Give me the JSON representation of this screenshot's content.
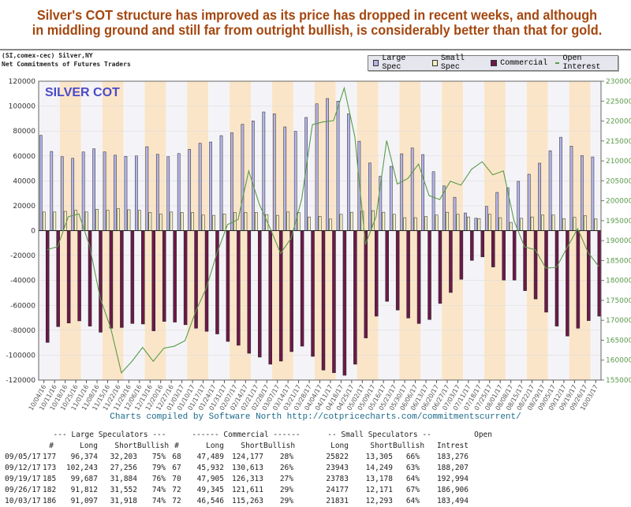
{
  "headline": [
    "Silver's COT structure has improved as its price has dropped in recent weeks, and although",
    "in middling ground and still far from outright bullish, is considerably better than that for gold."
  ],
  "header": {
    "symbol": "(SI,comex-cec) Silver,NY",
    "subtitle": "Net Commitments of Futures Traders"
  },
  "credit": "Charts compiled by Software North  http://cotpricecharts.com/commitmentscurrent/",
  "chart_data": {
    "type": "bar",
    "title": "SILVER COT",
    "legend_position": "top-right",
    "grid": true,
    "categories": [
      "10/04/16",
      "10/11/16",
      "10/18/16",
      "10/25/16",
      "11/01/16",
      "11/08/16",
      "11/15/16",
      "11/22/16",
      "11/29/16",
      "12/06/16",
      "12/13/16",
      "12/20/16",
      "12/27/16",
      "01/03/17",
      "01/10/17",
      "01/17/17",
      "01/24/17",
      "01/31/17",
      "02/07/17",
      "02/14/17",
      "02/21/17",
      "02/28/17",
      "03/07/17",
      "03/14/17",
      "03/21/17",
      "03/28/17",
      "04/04/17",
      "04/11/17",
      "04/18/17",
      "04/25/17",
      "05/02/17",
      "05/09/17",
      "05/16/17",
      "05/23/17",
      "05/30/17",
      "06/06/17",
      "06/13/17",
      "06/20/17",
      "06/27/17",
      "07/03/17",
      "07/11/17",
      "07/18/17",
      "07/25/17",
      "08/01/17",
      "08/08/17",
      "08/15/17",
      "08/22/17",
      "08/29/17",
      "09/05/17",
      "09/12/17",
      "09/19/17",
      "09/26/17",
      "10/03/17"
    ],
    "ylim": [
      -120000,
      120000
    ],
    "yticks": [
      "120000",
      "100000",
      "80000",
      "60000",
      "40000",
      "20000",
      "0",
      "-20000",
      "-40000",
      "-60000",
      "-80000",
      "-100000",
      "-120000"
    ],
    "y2lim": [
      155000,
      230000
    ],
    "y2ticks": [
      "230000",
      "225000",
      "220000",
      "215000",
      "210000",
      "205000",
      "200000",
      "195000",
      "190000",
      "185000",
      "180000",
      "175000",
      "170000",
      "165000",
      "160000",
      "155000"
    ],
    "colors": {
      "large": "#b4b4e8",
      "small": "#f4f0c0",
      "commercial": "#6a1a48",
      "oi": "#5a9a4a",
      "band": "#fbe5c8",
      "band_alt": "#f4f4f8"
    },
    "series": [
      {
        "name": "Large Spec",
        "type": "bar",
        "values": [
          76500,
          63600,
          59400,
          58100,
          63200,
          65700,
          63200,
          60600,
          59600,
          60000,
          67400,
          61300,
          59400,
          61900,
          65300,
          70200,
          71200,
          76300,
          78600,
          85400,
          88100,
          95300,
          93800,
          83300,
          79700,
          90900,
          101800,
          106100,
          104000,
          93800,
          71800,
          54300,
          43700,
          51600,
          61700,
          66400,
          61100,
          47300,
          35900,
          26800,
          14200,
          10000,
          19500,
          30700,
          34500,
          39600,
          45300,
          54200,
          64171,
          74987,
          67803,
          60260,
          59179
        ]
      },
      {
        "name": "Small Spec",
        "type": "bar",
        "values": [
          15000,
          15000,
          15500,
          16300,
          15000,
          17200,
          16300,
          17600,
          16800,
          16300,
          14600,
          13200,
          15000,
          14600,
          14600,
          12500,
          12300,
          13400,
          14600,
          14600,
          14600,
          12900,
          12300,
          15000,
          14600,
          11000,
          11400,
          9300,
          13100,
          14800,
          15600,
          16100,
          14800,
          13100,
          10400,
          10400,
          11400,
          12500,
          14800,
          13100,
          11000,
          9700,
          13100,
          10400,
          6600,
          9900,
          11000,
          12500,
          12517,
          9694,
          10605,
          12006,
          9538
        ]
      },
      {
        "name": "Commercial",
        "type": "bar",
        "values": [
          -89800,
          -77100,
          -74200,
          -72500,
          -76700,
          -81600,
          -78400,
          -77800,
          -74600,
          -75000,
          -80500,
          -72900,
          -73500,
          -75600,
          -78400,
          -80900,
          -83000,
          -89000,
          -92100,
          -98500,
          -101600,
          -107300,
          -104800,
          -97200,
          -92800,
          -101000,
          -112000,
          -114100,
          -116200,
          -107300,
          -86200,
          -68700,
          -56800,
          -63800,
          -70200,
          -74600,
          -71400,
          -58500,
          -49700,
          -39100,
          -23900,
          -21100,
          -29200,
          -39700,
          -39700,
          -48200,
          -54900,
          -65500,
          -76688,
          -84681,
          -78408,
          -72266,
          -68717
        ]
      },
      {
        "name": "Open Interest",
        "type": "line",
        "axis": "right",
        "values": [
          187700,
          188500,
          196000,
          196700,
          188700,
          175600,
          168000,
          156800,
          159700,
          163200,
          159700,
          163000,
          163500,
          164900,
          172200,
          178100,
          186800,
          194000,
          195300,
          207500,
          199100,
          193200,
          186800,
          190600,
          200500,
          219100,
          219800,
          220100,
          228300,
          216100,
          189000,
          196000,
          215100,
          204200,
          205600,
          209200,
          201300,
          200300,
          204900,
          203900,
          207900,
          209800,
          206500,
          207500,
          195000,
          188400,
          187700,
          183100,
          183276,
          188207,
          192994,
          186906,
          183494
        ]
      }
    ]
  },
  "table": {
    "group_headers": [
      "--- Large Speculators ---",
      "------ Commercial ------",
      "-- Small Speculators --",
      "Open"
    ],
    "columns": [
      "",
      "#",
      "Long",
      "Short",
      "Bullish",
      "#",
      "Long",
      "Short",
      "Bullish",
      "Long",
      "Short",
      "Bullish",
      "Intrest"
    ],
    "rows": [
      [
        "09/05/17",
        "177",
        "96,374",
        "32,203",
        "75%",
        "68",
        "47,489",
        "124,177",
        "28%",
        "25822",
        "13,305",
        "66%",
        "183,276"
      ],
      [
        "09/12/17",
        "173",
        "102,243",
        "27,256",
        "79%",
        "67",
        "45,932",
        "130,613",
        "26%",
        "23943",
        "14,249",
        "63%",
        "188,207"
      ],
      [
        "09/19/17",
        "185",
        "99,687",
        "31,884",
        "76%",
        "70",
        "47,905",
        "126,313",
        "27%",
        "23783",
        "13,178",
        "64%",
        "192,994"
      ],
      [
        "09/26/17",
        "182",
        "91,812",
        "31,552",
        "74%",
        "72",
        "49,345",
        "121,611",
        "29%",
        "24177",
        "12,171",
        "67%",
        "186,906"
      ],
      [
        "10/03/17",
        "186",
        "91,097",
        "31,918",
        "74%",
        "72",
        "46,546",
        "115,263",
        "29%",
        "21831",
        "12,293",
        "64%",
        "183,494"
      ]
    ]
  }
}
